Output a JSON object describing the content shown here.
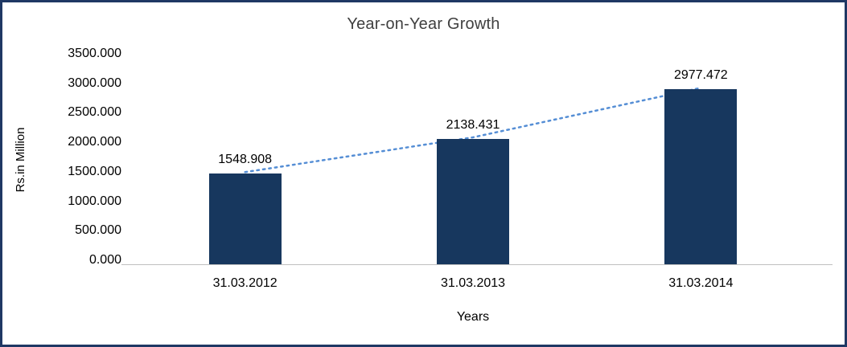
{
  "frame": {
    "border_color": "#1F3864",
    "background_color": "#FFFFFF"
  },
  "chart_data": {
    "type": "bar",
    "title": "Year-on-Year Growth",
    "xlabel": "Years",
    "ylabel": "Rs.in Million",
    "categories": [
      "31.03.2012",
      "31.03.2013",
      "31.03.2014"
    ],
    "values": [
      1548.908,
      2138.431,
      2977.472
    ],
    "value_labels": [
      "1548.908",
      "2138.431",
      "2977.472"
    ],
    "ylim": [
      0,
      3500
    ],
    "ytick_step": 500,
    "ytick_labels": [
      "3500.000",
      "3000.000",
      "2500.000",
      "2000.000",
      "1500.000",
      "1000.000",
      "500.000",
      "0.000"
    ],
    "bar_color": "#17375E",
    "trendline": {
      "type": "dotted",
      "color": "#558ED5"
    },
    "grid": false,
    "legend": false
  }
}
